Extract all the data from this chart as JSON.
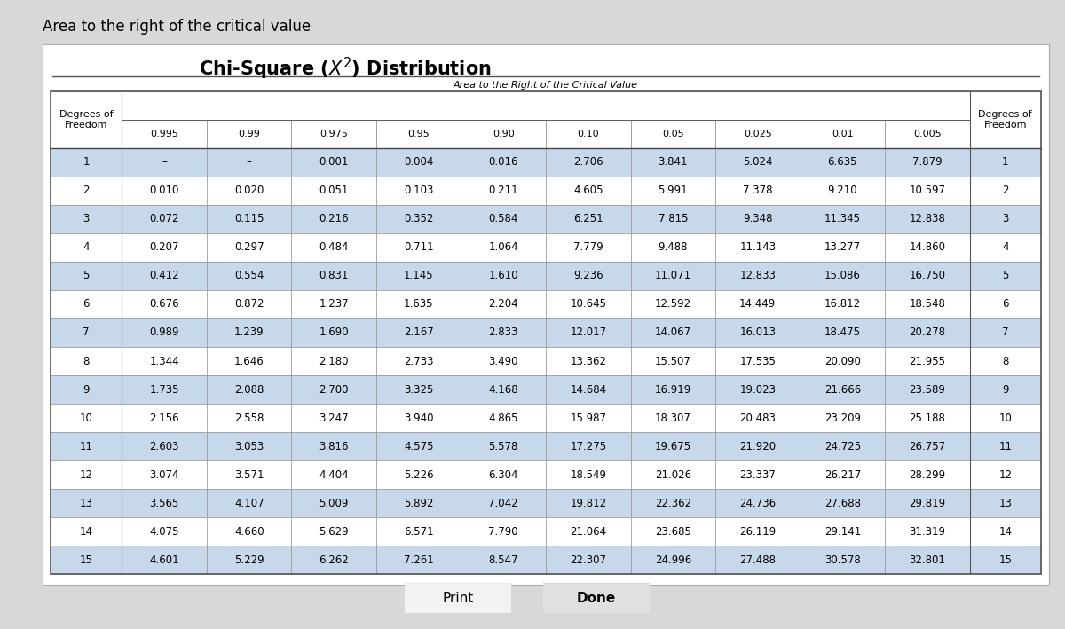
{
  "title": "Chi-Square (χ²) Distribution",
  "page_title": "Area to the right of the critical value",
  "header_label": "Area to the Right of the Critical Value",
  "col_headers": [
    "0.995",
    "0.99",
    "0.975",
    "0.95",
    "0.90",
    "0.10",
    "0.05",
    "0.025",
    "0.01",
    "0.005"
  ],
  "row_labels": [
    "1",
    "2",
    "3",
    "4",
    "5",
    "6",
    "7",
    "8",
    "9",
    "10",
    "11",
    "12",
    "13",
    "14",
    "15"
  ],
  "table_data": [
    [
      "–",
      "–",
      "0.001",
      "0.004",
      "0.016",
      "2.706",
      "3.841",
      "5.024",
      "6.635",
      "7.879"
    ],
    [
      "0.010",
      "0.020",
      "0.051",
      "0.103",
      "0.211",
      "4.605",
      "5.991",
      "7.378",
      "9.210",
      "10.597"
    ],
    [
      "0.072",
      "0.115",
      "0.216",
      "0.352",
      "0.584",
      "6.251",
      "7.815",
      "9.348",
      "11.345",
      "12.838"
    ],
    [
      "0.207",
      "0.297",
      "0.484",
      "0.711",
      "1.064",
      "7.779",
      "9.488",
      "11.143",
      "13.277",
      "14.860"
    ],
    [
      "0.412",
      "0.554",
      "0.831",
      "1.145",
      "1.610",
      "9.236",
      "11.071",
      "12.833",
      "15.086",
      "16.750"
    ],
    [
      "0.676",
      "0.872",
      "1.237",
      "1.635",
      "2.204",
      "10.645",
      "12.592",
      "14.449",
      "16.812",
      "18.548"
    ],
    [
      "0.989",
      "1.239",
      "1.690",
      "2.167",
      "2.833",
      "12.017",
      "14.067",
      "16.013",
      "18.475",
      "20.278"
    ],
    [
      "1.344",
      "1.646",
      "2.180",
      "2.733",
      "3.490",
      "13.362",
      "15.507",
      "17.535",
      "20.090",
      "21.955"
    ],
    [
      "1.735",
      "2.088",
      "2.700",
      "3.325",
      "4.168",
      "14.684",
      "16.919",
      "19.023",
      "21.666",
      "23.589"
    ],
    [
      "2.156",
      "2.558",
      "3.247",
      "3.940",
      "4.865",
      "15.987",
      "18.307",
      "20.483",
      "23.209",
      "25.188"
    ],
    [
      "2.603",
      "3.053",
      "3.816",
      "4.575",
      "5.578",
      "17.275",
      "19.675",
      "21.920",
      "24.725",
      "26.757"
    ],
    [
      "3.074",
      "3.571",
      "4.404",
      "5.226",
      "6.304",
      "18.549",
      "21.026",
      "23.337",
      "26.217",
      "28.299"
    ],
    [
      "3.565",
      "4.107",
      "5.009",
      "5.892",
      "7.042",
      "19.812",
      "22.362",
      "24.736",
      "27.688",
      "29.819"
    ],
    [
      "4.075",
      "4.660",
      "5.629",
      "6.571",
      "7.790",
      "21.064",
      "23.685",
      "26.119",
      "29.141",
      "31.319"
    ],
    [
      "4.601",
      "5.229",
      "6.262",
      "7.261",
      "8.547",
      "22.307",
      "24.996",
      "27.488",
      "30.578",
      "32.801"
    ]
  ],
  "bg_color": "#d8d8d8",
  "table_bg": "#ffffff",
  "row_even_bg": "#c8d8eb",
  "row_odd_bg": "#ffffff",
  "cell_fontsize": 8.5,
  "header_fontsize": 8.5
}
